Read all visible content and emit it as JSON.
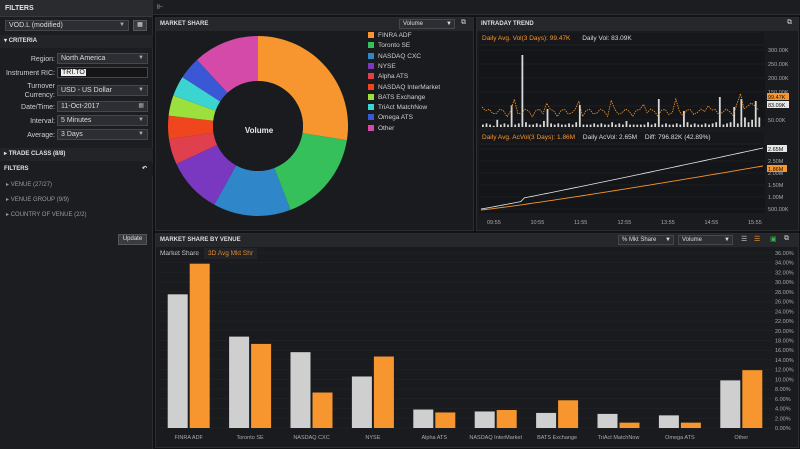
{
  "filters": {
    "title": "FILTERS",
    "instrument_select": "VOD.L (modified)",
    "criteria_label": "CRITERIA",
    "region": {
      "label": "Region:",
      "value": "North America"
    },
    "ric": {
      "label": "Instrument RIC:",
      "value": "TRI.TO"
    },
    "currency": {
      "label": "Turnover Currency:",
      "value": "USD - US Dollar"
    },
    "datetime": {
      "label": "Date/Time:",
      "value": "11-Oct-2017"
    },
    "interval": {
      "label": "Interval:",
      "value": "5 Minutes"
    },
    "average": {
      "label": "Average:",
      "value": "3 Days"
    },
    "trade_class": "TRADE CLASS (8/8)",
    "filters_section": "FILTERS",
    "items": [
      "VENUE (27/27)",
      "VENUE GROUP (9/9)",
      "COUNTRY OF VENUE (2/2)"
    ],
    "update": "Update"
  },
  "market_share": {
    "title": "MARKET SHARE",
    "select": "Volume",
    "center": "Volume",
    "legend": [
      {
        "name": "FINRA ADF",
        "color": "#f7962e"
      },
      {
        "name": "Toronto SE",
        "color": "#36c05c"
      },
      {
        "name": "NASDAQ CXC",
        "color": "#2f86c9"
      },
      {
        "name": "NYSE",
        "color": "#7a37c0"
      },
      {
        "name": "Alpha ATS",
        "color": "#e0404e"
      },
      {
        "name": "NASDAQ InterMarket",
        "color": "#f0461e"
      },
      {
        "name": "BATS Exchange",
        "color": "#9be03c"
      },
      {
        "name": "TriAct MatchNow",
        "color": "#3cd4d0"
      },
      {
        "name": "Omega ATS",
        "color": "#3a58d6"
      },
      {
        "name": "Other",
        "color": "#d44aa8"
      }
    ]
  },
  "intraday": {
    "title": "INTRADAY TREND",
    "top_avg": "Daily Avg. Vol(3 Days): 99.47K",
    "top_vol": "Daily Vol: 83.09K",
    "bot_avg": "Daily Avg. AcVol(3 Days): 1.86M",
    "bot_acvol": "Daily AcVol: 2.65M",
    "bot_diff": "Diff: 796.82K (42.89%)",
    "top_ticks": [
      "300.00K",
      "250.00K",
      "200.00K",
      "150.00K",
      "100.00K",
      "50.00K"
    ],
    "top_badge1": "99.47K",
    "top_badge2": "83.09K",
    "bot_ticks": [
      "3.00M",
      "2.50M",
      "2.00M",
      "1.50M",
      "1.00M",
      "500.00K"
    ],
    "bot_badge1": "2.65M",
    "bot_badge2": "1.86M",
    "x_ticks": [
      "09:55",
      "10:55",
      "11:55",
      "12:55",
      "13:55",
      "14:55",
      "15:55"
    ]
  },
  "venue": {
    "title": "MARKET SHARE BY VENUE",
    "sel1": "% Mkt Share",
    "sel2": "Volume",
    "tab1": "Market Share",
    "tab2": "3D Avg Mkt Shr"
  },
  "chart_data": {
    "type": "bar",
    "categories": [
      "FINRA ADF",
      "Toronto SE",
      "NASDAQ CXC",
      "NYSE",
      "Alpha ATS",
      "NASDAQ InterMarket",
      "BATS Exchange",
      "TriAct MatchNow",
      "Omega ATS",
      "Other"
    ],
    "series": [
      {
        "name": "Market Share",
        "color": "#cfcfcf",
        "values": [
          27.5,
          18.8,
          15.6,
          10.6,
          3.8,
          3.4,
          3.1,
          2.9,
          2.6,
          9.8
        ]
      },
      {
        "name": "3D Avg Mkt Shr",
        "color": "#f7962e",
        "values": [
          33.8,
          17.3,
          7.3,
          14.7,
          3.2,
          3.7,
          5.7,
          1.1,
          1.1,
          11.9
        ]
      }
    ],
    "ylim": [
      0,
      36
    ],
    "yticks": [
      "0.00%",
      "2.00%",
      "4.00%",
      "6.00%",
      "8.00%",
      "10.00%",
      "12.00%",
      "14.00%",
      "16.00%",
      "18.00%",
      "20.00%",
      "22.00%",
      "24.00%",
      "26.00%",
      "28.00%",
      "30.00%",
      "32.00%",
      "34.00%",
      "36.00%"
    ]
  },
  "pie_values": [
    30.2,
    18.2,
    15.3,
    11.0,
    5.0,
    4.6,
    4.0,
    4.0,
    4.4,
    13.0
  ]
}
